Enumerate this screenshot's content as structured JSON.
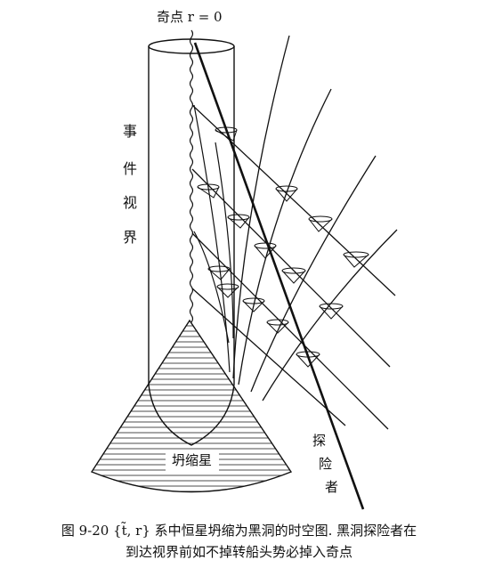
{
  "singularity_label": "奇点 r = 0",
  "event_horizon_chars": [
    "事",
    "件",
    "视",
    "界"
  ],
  "collapsing_star_label": "坍缩星",
  "explorer_chars": [
    "探",
    "险",
    "者"
  ],
  "caption": {
    "line1": "图 9-20    {t̃, r} 系中恒星坍缩为黑洞的时空图. 黑洞探险者在",
    "line2": "到达视界前如不掉转船头势必掉入奇点"
  }
}
